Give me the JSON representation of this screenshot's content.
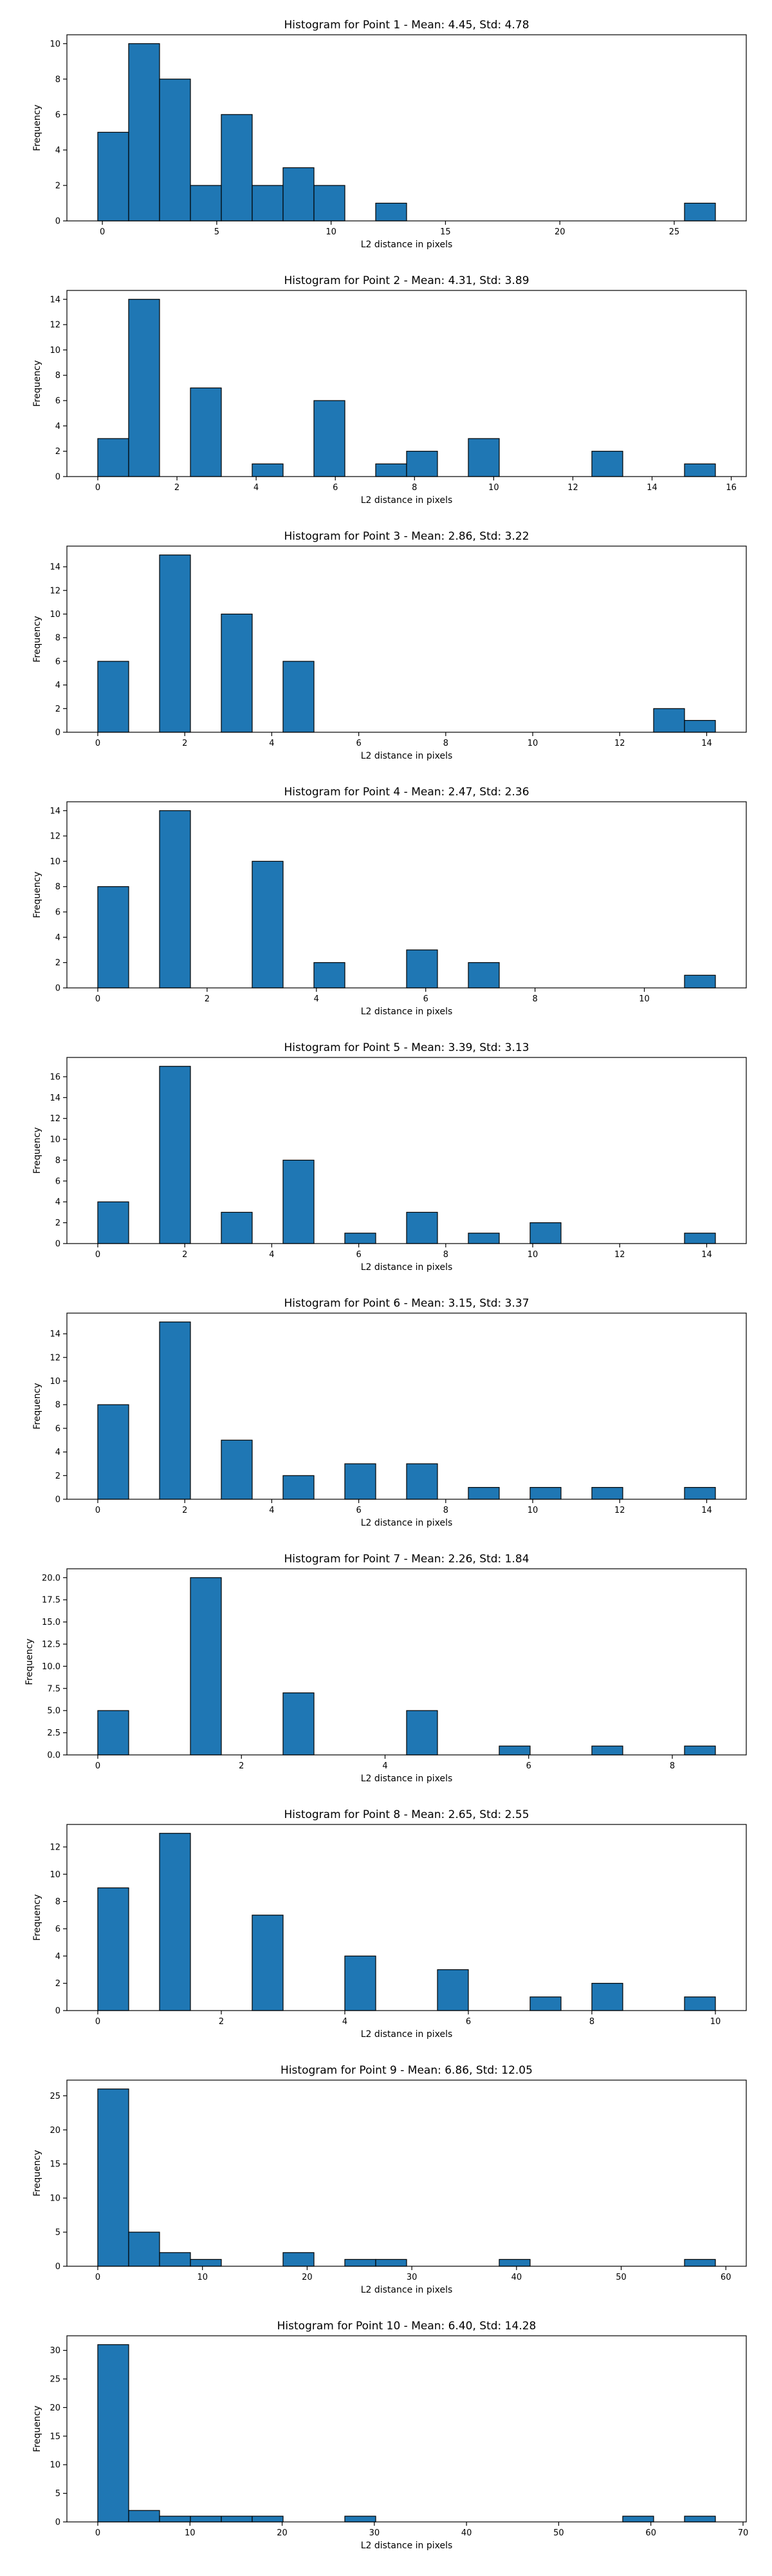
{
  "chart_data": [
    {
      "type": "bar",
      "title": "Histogram for Point 1 - Mean: 4.45, Std: 4.78",
      "xlabel": "L2 distance in pixels",
      "ylabel": "Frequency",
      "bin_edges": [
        -0.2,
        1.15,
        2.5,
        3.85,
        5.2,
        6.55,
        7.9,
        9.25,
        10.6,
        11.95,
        13.3,
        14.65,
        16.0,
        17.35,
        18.7,
        20.05,
        21.4,
        22.75,
        24.1,
        25.45,
        26.8
      ],
      "values": [
        5,
        10,
        8,
        2,
        6,
        2,
        3,
        2,
        0,
        1,
        0,
        0,
        0,
        0,
        0,
        0,
        0,
        0,
        0,
        1
      ],
      "xlim": [
        -1.55,
        28.15
      ],
      "ylim": [
        0,
        10.5
      ],
      "xticks": [
        0,
        5,
        10,
        15,
        20,
        25
      ],
      "yticks": [
        0,
        2,
        4,
        6,
        8,
        10
      ],
      "grid": false
    },
    {
      "type": "bar",
      "title": "Histogram for Point 2 - Mean: 4.31, Std: 3.89",
      "xlabel": "L2 distance in pixels",
      "ylabel": "Frequency",
      "bin_edges": [
        0.0,
        0.78,
        1.56,
        2.34,
        3.12,
        3.9,
        4.68,
        5.46,
        6.24,
        7.02,
        7.8,
        8.58,
        9.36,
        10.14,
        10.92,
        11.7,
        12.48,
        13.26,
        14.04,
        14.82,
        15.6
      ],
      "values": [
        3,
        14,
        0,
        7,
        0,
        1,
        0,
        6,
        0,
        1,
        2,
        0,
        3,
        0,
        0,
        0,
        2,
        0,
        0,
        1
      ],
      "xlim": [
        -0.78,
        16.38
      ],
      "ylim": [
        0,
        14.7
      ],
      "xticks": [
        0,
        2,
        4,
        6,
        8,
        10,
        12,
        14,
        16
      ],
      "yticks": [
        0,
        2,
        4,
        6,
        8,
        10,
        12,
        14
      ],
      "grid": false
    },
    {
      "type": "bar",
      "title": "Histogram for Point 3 - Mean: 2.86, Std: 3.22",
      "xlabel": "L2 distance in pixels",
      "ylabel": "Frequency",
      "bin_edges": [
        0.0,
        0.71,
        1.42,
        2.13,
        2.84,
        3.55,
        4.26,
        4.97,
        5.68,
        6.39,
        7.1,
        7.81,
        8.52,
        9.23,
        9.94,
        10.65,
        11.36,
        12.07,
        12.78,
        13.49,
        14.2
      ],
      "values": [
        6,
        0,
        15,
        0,
        10,
        0,
        6,
        0,
        0,
        0,
        0,
        0,
        0,
        0,
        0,
        0,
        0,
        0,
        2,
        1
      ],
      "xlim": [
        -0.71,
        14.91
      ],
      "ylim": [
        0,
        15.75
      ],
      "xticks": [
        0,
        2,
        4,
        6,
        8,
        10,
        12,
        14
      ],
      "yticks": [
        0,
        2,
        4,
        6,
        8,
        10,
        12,
        14
      ],
      "grid": false
    },
    {
      "type": "bar",
      "title": "Histogram for Point 4 - Mean: 2.47, Std: 2.36",
      "xlabel": "L2 distance in pixels",
      "ylabel": "Frequency",
      "bin_edges": [
        0.0,
        0.565,
        1.13,
        1.695,
        2.26,
        2.825,
        3.39,
        3.955,
        4.52,
        5.085,
        5.65,
        6.215,
        6.78,
        7.345,
        7.91,
        8.475,
        9.04,
        9.605,
        10.17,
        10.735,
        11.3
      ],
      "values": [
        8,
        0,
        14,
        0,
        0,
        10,
        0,
        2,
        0,
        0,
        3,
        0,
        2,
        0,
        0,
        0,
        0,
        0,
        0,
        1
      ],
      "xlim": [
        -0.565,
        11.865
      ],
      "ylim": [
        0,
        14.7
      ],
      "xticks": [
        0,
        2,
        4,
        6,
        8,
        10
      ],
      "yticks": [
        0,
        2,
        4,
        6,
        8,
        10,
        12,
        14
      ],
      "grid": false
    },
    {
      "type": "bar",
      "title": "Histogram for Point 5 - Mean: 3.39, Std: 3.13",
      "xlabel": "L2 distance in pixels",
      "ylabel": "Frequency",
      "bin_edges": [
        0.0,
        0.71,
        1.42,
        2.13,
        2.84,
        3.55,
        4.26,
        4.97,
        5.68,
        6.39,
        7.1,
        7.81,
        8.52,
        9.23,
        9.94,
        10.65,
        11.36,
        12.07,
        12.78,
        13.49,
        14.2
      ],
      "values": [
        4,
        0,
        17,
        0,
        3,
        0,
        8,
        0,
        1,
        0,
        3,
        0,
        1,
        0,
        2,
        0,
        0,
        0,
        0,
        1
      ],
      "xlim": [
        -0.71,
        14.91
      ],
      "ylim": [
        0,
        17.85
      ],
      "xticks": [
        0,
        2,
        4,
        6,
        8,
        10,
        12,
        14
      ],
      "yticks": [
        0,
        2,
        4,
        6,
        8,
        10,
        12,
        14,
        16
      ],
      "grid": false
    },
    {
      "type": "bar",
      "title": "Histogram for Point 6 - Mean: 3.15, Std: 3.37",
      "xlabel": "L2 distance in pixels",
      "ylabel": "Frequency",
      "bin_edges": [
        0.0,
        0.71,
        1.42,
        2.13,
        2.84,
        3.55,
        4.26,
        4.97,
        5.68,
        6.39,
        7.1,
        7.81,
        8.52,
        9.23,
        9.94,
        10.65,
        11.36,
        12.07,
        12.78,
        13.49,
        14.2
      ],
      "values": [
        8,
        0,
        15,
        0,
        5,
        0,
        2,
        0,
        3,
        0,
        3,
        0,
        1,
        0,
        1,
        0,
        1,
        0,
        0,
        1
      ],
      "xlim": [
        -0.71,
        14.91
      ],
      "ylim": [
        0,
        15.75
      ],
      "xticks": [
        0,
        2,
        4,
        6,
        8,
        10,
        12,
        14
      ],
      "yticks": [
        0,
        2,
        4,
        6,
        8,
        10,
        12,
        14
      ],
      "grid": false
    },
    {
      "type": "bar",
      "title": "Histogram for Point 7 - Mean: 2.26, Std: 1.84",
      "xlabel": "L2 distance in pixels",
      "ylabel": "Frequency",
      "bin_edges": [
        0.0,
        0.43,
        0.86,
        1.29,
        1.72,
        2.15,
        2.58,
        3.01,
        3.44,
        3.87,
        4.3,
        4.73,
        5.16,
        5.59,
        6.02,
        6.45,
        6.88,
        7.31,
        7.74,
        8.17,
        8.6
      ],
      "values": [
        5,
        0,
        0,
        20,
        0,
        0,
        7,
        0,
        0,
        0,
        5,
        0,
        0,
        1,
        0,
        0,
        1,
        0,
        0,
        1
      ],
      "xlim": [
        -0.43,
        9.03
      ],
      "ylim": [
        0,
        21
      ],
      "xticks": [
        0,
        2,
        4,
        6,
        8
      ],
      "yticks": [
        0.0,
        2.5,
        5.0,
        7.5,
        10.0,
        12.5,
        15.0,
        17.5,
        20.0
      ],
      "grid": false
    },
    {
      "type": "bar",
      "title": "Histogram for Point 8 - Mean: 2.65, Std: 2.55",
      "xlabel": "L2 distance in pixels",
      "ylabel": "Frequency",
      "bin_edges": [
        0.0,
        0.5,
        1.0,
        1.5,
        2.0,
        2.5,
        3.0,
        3.5,
        4.0,
        4.5,
        5.0,
        5.5,
        6.0,
        6.5,
        7.0,
        7.5,
        8.0,
        8.5,
        9.0,
        9.5,
        10.0
      ],
      "values": [
        9,
        0,
        13,
        0,
        0,
        7,
        0,
        0,
        4,
        0,
        0,
        3,
        0,
        0,
        1,
        0,
        2,
        0,
        0,
        1
      ],
      "xlim": [
        -0.5,
        10.5
      ],
      "ylim": [
        0,
        13.65
      ],
      "xticks": [
        0,
        2,
        4,
        6,
        8,
        10
      ],
      "yticks": [
        0,
        2,
        4,
        6,
        8,
        10,
        12
      ],
      "grid": false
    },
    {
      "type": "bar",
      "title": "Histogram for Point 9 - Mean: 6.86, Std: 12.05",
      "xlabel": "L2 distance in pixels",
      "ylabel": "Frequency",
      "bin_edges": [
        0.0,
        2.95,
        5.9,
        8.85,
        11.8,
        14.75,
        17.7,
        20.65,
        23.6,
        26.55,
        29.5,
        32.45,
        35.4,
        38.35,
        41.3,
        44.25,
        47.2,
        50.15,
        53.1,
        56.05,
        59.0
      ],
      "values": [
        26,
        5,
        2,
        1,
        0,
        0,
        2,
        0,
        1,
        1,
        0,
        0,
        0,
        1,
        0,
        0,
        0,
        0,
        0,
        1
      ],
      "xlim": [
        -2.95,
        61.95
      ],
      "ylim": [
        0,
        27.3
      ],
      "xticks": [
        0,
        10,
        20,
        30,
        40,
        50,
        60
      ],
      "yticks": [
        0,
        5,
        10,
        15,
        20,
        25
      ],
      "grid": false
    },
    {
      "type": "bar",
      "title": "Histogram for Point 10 - Mean: 6.40, Std: 14.28",
      "xlabel": "L2 distance in pixels",
      "ylabel": "Frequency",
      "bin_edges": [
        0.0,
        3.35,
        6.7,
        10.05,
        13.4,
        16.75,
        20.1,
        23.45,
        26.8,
        30.15,
        33.5,
        36.85,
        40.2,
        43.55,
        46.9,
        50.25,
        53.6,
        56.95,
        60.3,
        63.65,
        67.0
      ],
      "values": [
        31,
        2,
        1,
        1,
        1,
        1,
        0,
        0,
        1,
        0,
        0,
        0,
        0,
        0,
        0,
        0,
        0,
        1,
        0,
        1
      ],
      "xlim": [
        -3.35,
        70.35
      ],
      "ylim": [
        0,
        32.55
      ],
      "xticks": [
        0,
        10,
        20,
        30,
        40,
        50,
        60,
        70
      ],
      "yticks": [
        0,
        5,
        10,
        15,
        20,
        25,
        30
      ],
      "grid": false
    }
  ],
  "style": {
    "bar_color": "#1f77b4",
    "edge_color": "#000000"
  }
}
